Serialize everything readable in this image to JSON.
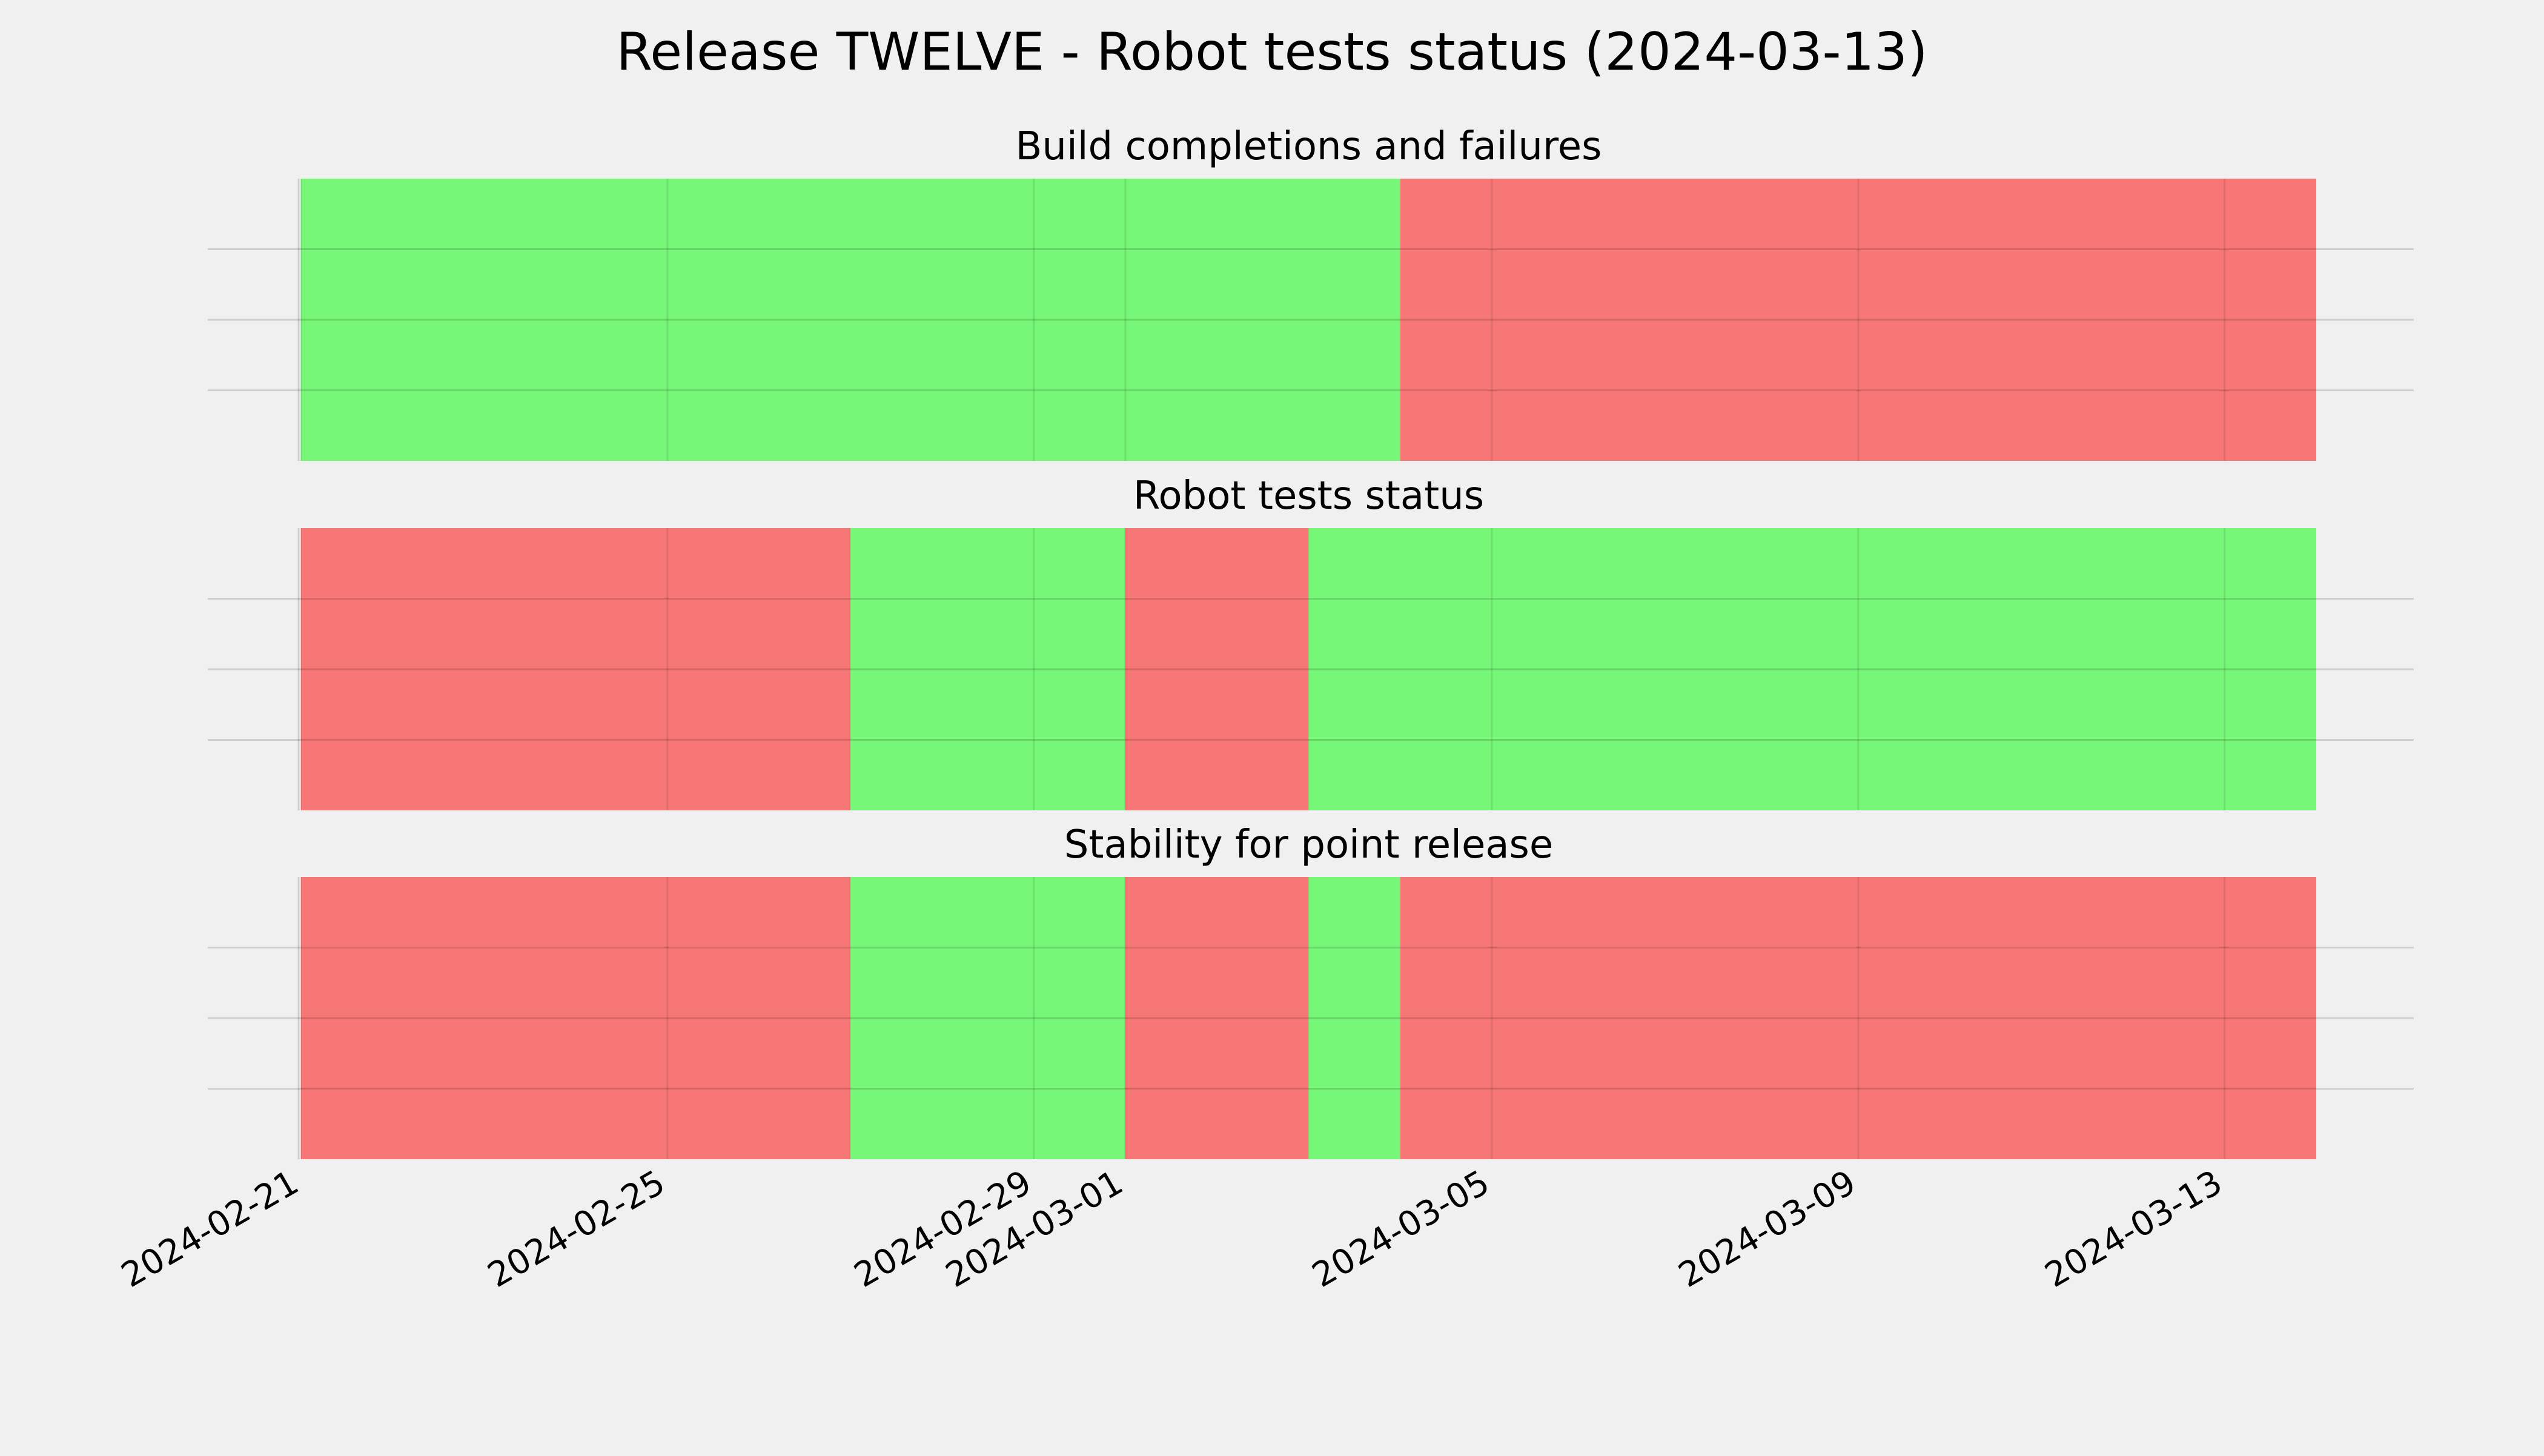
{
  "chart_data": {
    "type": "timeline",
    "title": "Release TWELVE - Robot tests status (2024-03-13)",
    "x_range": [
      "2024-02-21",
      "2024-03-14"
    ],
    "x_ticks": [
      "2024-02-21",
      "2024-02-25",
      "2024-02-29",
      "2024-03-01",
      "2024-03-05",
      "2024-03-09",
      "2024-03-13"
    ],
    "status_colors": {
      "pass": "#77f777",
      "fail": "#f77777"
    },
    "grid": true,
    "panels": [
      {
        "title": "Build completions and failures",
        "segments": [
          {
            "start": "2024-02-21",
            "end": "2024-03-04",
            "status": "pass"
          },
          {
            "start": "2024-03-04",
            "end": "2024-03-14",
            "status": "fail"
          }
        ]
      },
      {
        "title": "Robot tests status",
        "segments": [
          {
            "start": "2024-02-21",
            "end": "2024-02-27",
            "status": "fail"
          },
          {
            "start": "2024-02-27",
            "end": "2024-03-01",
            "status": "pass"
          },
          {
            "start": "2024-03-01",
            "end": "2024-03-03",
            "status": "fail"
          },
          {
            "start": "2024-03-03",
            "end": "2024-03-14",
            "status": "pass"
          }
        ]
      },
      {
        "title": "Stability for point release",
        "segments": [
          {
            "start": "2024-02-21",
            "end": "2024-02-27",
            "status": "fail"
          },
          {
            "start": "2024-02-27",
            "end": "2024-03-01",
            "status": "pass"
          },
          {
            "start": "2024-03-01",
            "end": "2024-03-03",
            "status": "fail"
          },
          {
            "start": "2024-03-03",
            "end": "2024-03-04",
            "status": "pass"
          },
          {
            "start": "2024-03-04",
            "end": "2024-03-14",
            "status": "fail"
          }
        ]
      }
    ]
  }
}
